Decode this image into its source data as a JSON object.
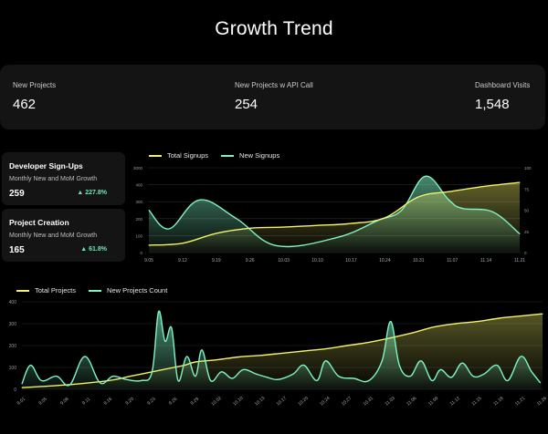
{
  "page": {
    "title": "Growth Trend"
  },
  "stats": [
    {
      "label": "New Projects",
      "value": "462"
    },
    {
      "label": "New Projects w API Call",
      "value": "254"
    },
    {
      "label": "Dashboard Visits",
      "value": "1,548"
    }
  ],
  "cards": [
    {
      "title": "Developer Sign-Ups",
      "subtitle": "Monthly New and MoM Growth",
      "value": "259",
      "growth": "▲ 227.8%"
    },
    {
      "title": "Project Creation",
      "subtitle": "Monthly New and MoM Growth",
      "value": "165",
      "growth": "▲ 61.8%"
    }
  ],
  "colors": {
    "yellow": "#f2f26b",
    "mint": "#7ef5c4",
    "card": "#141414"
  },
  "chart_data": [
    {
      "type": "line",
      "legend": [
        "Total Signups",
        "New Signups"
      ],
      "categories": [
        "9.05",
        "9.12",
        "9.19",
        "9.26",
        "10.03",
        "10.10",
        "10.17",
        "10.24",
        "10.31",
        "11.07",
        "11.14",
        "11.21"
      ],
      "ylim_left": [
        0,
        3000
      ],
      "yticks_left": [
        "3000",
        "400",
        "300",
        "200",
        "100",
        "0"
      ],
      "ylim_right": [
        0,
        100
      ],
      "yticks_right": [
        "100",
        "75",
        "50",
        "25",
        "0"
      ],
      "series": [
        {
          "name": "Total Signups",
          "axis": "left",
          "x": [
            0,
            1,
            2,
            3,
            4,
            5,
            6,
            7,
            8,
            9,
            10,
            11
          ],
          "values": [
            260,
            330,
            680,
            860,
            900,
            960,
            1030,
            1230,
            1970,
            2170,
            2350,
            2480
          ]
        },
        {
          "name": "New Signups",
          "axis": "right",
          "x": [
            0,
            0.6,
            1.5,
            2.6,
            3.8,
            5.6,
            6.8,
            7.5,
            8.2,
            8.9,
            9.3,
            10.2,
            11
          ],
          "values": [
            50,
            28,
            62,
            40,
            8,
            18,
            38,
            50,
            90,
            62,
            52,
            48,
            22
          ]
        }
      ],
      "grid": true
    },
    {
      "type": "line",
      "legend": [
        "Total Projects",
        "New Projects Count"
      ],
      "categories": [
        "9.01",
        "9.05",
        "9.08",
        "9.11",
        "9.16",
        "9.20",
        "9.23",
        "9.26",
        "9.29",
        "10.02",
        "10.10",
        "10.13",
        "10.17",
        "10.20",
        "10.24",
        "10.27",
        "10.31",
        "11.03",
        "11.06",
        "11.09",
        "11.12",
        "11.15",
        "11.18",
        "11.21",
        "11.26"
      ],
      "ylim": [
        0,
        400
      ],
      "yticks": [
        "400",
        "300",
        "200",
        "100",
        "0"
      ],
      "series": [
        {
          "name": "Total Projects",
          "x": [
            0,
            2,
            4,
            5,
            6,
            7,
            7.5,
            8,
            9,
            10,
            11,
            12,
            13,
            14,
            15,
            16,
            17,
            18,
            19,
            20,
            21,
            22,
            23,
            24
          ],
          "values": [
            8,
            20,
            40,
            60,
            80,
            100,
            110,
            125,
            135,
            148,
            155,
            165,
            175,
            185,
            200,
            215,
            235,
            258,
            285,
            300,
            310,
            325,
            335,
            345
          ]
        },
        {
          "name": "New Projects Count",
          "x": [
            0,
            0.4,
            0.9,
            1.6,
            2.2,
            2.9,
            3.6,
            4.2,
            4.8,
            5.5,
            6.0,
            6.3,
            6.6,
            6.9,
            7.2,
            7.6,
            8.0,
            8.3,
            8.7,
            9.2,
            9.7,
            10.2,
            10.8,
            11.3,
            11.8,
            12.5,
            13.0,
            13.6,
            14.0,
            14.6,
            15.3,
            16.0,
            16.6,
            17.0,
            17.4,
            17.9,
            18.4,
            18.9,
            19.3,
            19.8,
            20.3,
            20.8,
            21.3,
            21.9,
            22.4,
            23.0,
            23.5,
            23.9
          ],
          "values": [
            25,
            110,
            40,
            60,
            20,
            150,
            30,
            60,
            45,
            40,
            80,
            355,
            220,
            280,
            40,
            150,
            60,
            180,
            40,
            80,
            50,
            90,
            70,
            55,
            45,
            70,
            110,
            40,
            130,
            60,
            50,
            40,
            130,
            310,
            110,
            60,
            130,
            40,
            90,
            55,
            120,
            60,
            70,
            110,
            40,
            150,
            80,
            30
          ]
        }
      ],
      "grid": true
    }
  ]
}
